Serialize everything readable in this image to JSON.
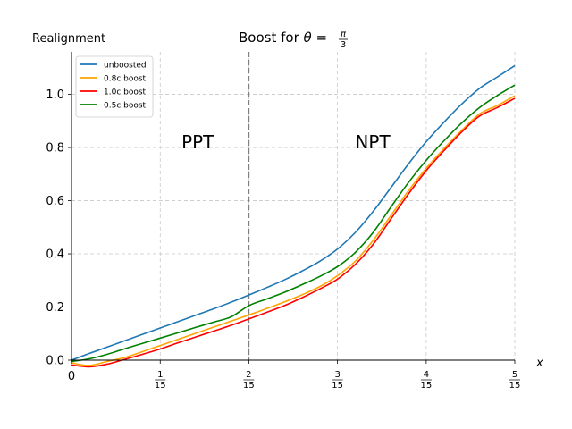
{
  "chart_data": {
    "type": "line",
    "title": {
      "prefix": "Boost for ",
      "theta": "θ",
      "equals": " = ",
      "numerator": "π",
      "denominator": "3"
    },
    "ylabel": "Realignment",
    "xlabel": "x",
    "xlim": [
      0,
      0.3333
    ],
    "ylim": [
      0,
      1.16
    ],
    "grid": true,
    "legend_position": "top-left",
    "origin_label": "0",
    "xticks": [
      {
        "value": 0.0667,
        "numerator": "1",
        "denominator": "15"
      },
      {
        "value": 0.1333,
        "numerator": "2",
        "denominator": "15"
      },
      {
        "value": 0.2,
        "numerator": "3",
        "denominator": "15"
      },
      {
        "value": 0.2667,
        "numerator": "4",
        "denominator": "15"
      },
      {
        "value": 0.3333,
        "numerator": "5",
        "denominator": "15"
      }
    ],
    "yticks": [
      {
        "value": 0.0,
        "label": "0.0"
      },
      {
        "value": 0.2,
        "label": "0.2"
      },
      {
        "value": 0.4,
        "label": "0.4"
      },
      {
        "value": 0.6,
        "label": "0.6"
      },
      {
        "value": 0.8,
        "label": "0.8"
      },
      {
        "value": 1.0,
        "label": "1.0"
      }
    ],
    "vertical_line": {
      "x": 0.1333,
      "style": "dashed",
      "color": "#808080"
    },
    "regions": [
      {
        "label": "PPT",
        "x": 0.0827,
        "y": 0.82
      },
      {
        "label": "NPT",
        "x": 0.2133,
        "y": 0.82
      }
    ],
    "x": [
      0,
      0.0133,
      0.0267,
      0.04,
      0.0533,
      0.0667,
      0.08,
      0.0933,
      0.1067,
      0.12,
      0.1333,
      0.1467,
      0.16,
      0.1733,
      0.1867,
      0.2,
      0.2133,
      0.2267,
      0.24,
      0.2533,
      0.2667,
      0.28,
      0.2933,
      0.3067,
      0.32,
      0.3333
    ],
    "series": [
      {
        "name": "unboosted",
        "color": "#1f77b4",
        "values": [
          0.0,
          0.025,
          0.049,
          0.073,
          0.097,
          0.121,
          0.145,
          0.169,
          0.193,
          0.218,
          0.245,
          0.273,
          0.302,
          0.335,
          0.372,
          0.418,
          0.48,
          0.559,
          0.648,
          0.738,
          0.822,
          0.895,
          0.963,
          1.022,
          1.065,
          1.108
        ]
      },
      {
        "name": "0.8c boost",
        "color": "#ffa500",
        "values": [
          -0.01,
          -0.02,
          -0.005,
          0.01,
          0.032,
          0.055,
          0.078,
          0.101,
          0.124,
          0.147,
          0.17,
          0.194,
          0.219,
          0.246,
          0.277,
          0.318,
          0.372,
          0.45,
          0.543,
          0.637,
          0.722,
          0.796,
          0.864,
          0.926,
          0.958,
          0.995
        ]
      },
      {
        "name": "1.0c boost",
        "color": "#ff0000",
        "values": [
          -0.018,
          -0.025,
          -0.015,
          0.003,
          0.022,
          0.042,
          0.065,
          0.087,
          0.109,
          0.131,
          0.155,
          0.18,
          0.205,
          0.235,
          0.268,
          0.305,
          0.36,
          0.435,
          0.53,
          0.625,
          0.713,
          0.788,
          0.858,
          0.918,
          0.95,
          0.985
        ]
      },
      {
        "name": "0.5c boost",
        "color": "#008000",
        "values": [
          -0.005,
          0.005,
          0.022,
          0.043,
          0.063,
          0.083,
          0.103,
          0.123,
          0.143,
          0.163,
          0.205,
          0.23,
          0.255,
          0.284,
          0.315,
          0.352,
          0.405,
          0.48,
          0.575,
          0.668,
          0.752,
          0.825,
          0.892,
          0.95,
          0.995,
          1.035
        ]
      }
    ]
  }
}
